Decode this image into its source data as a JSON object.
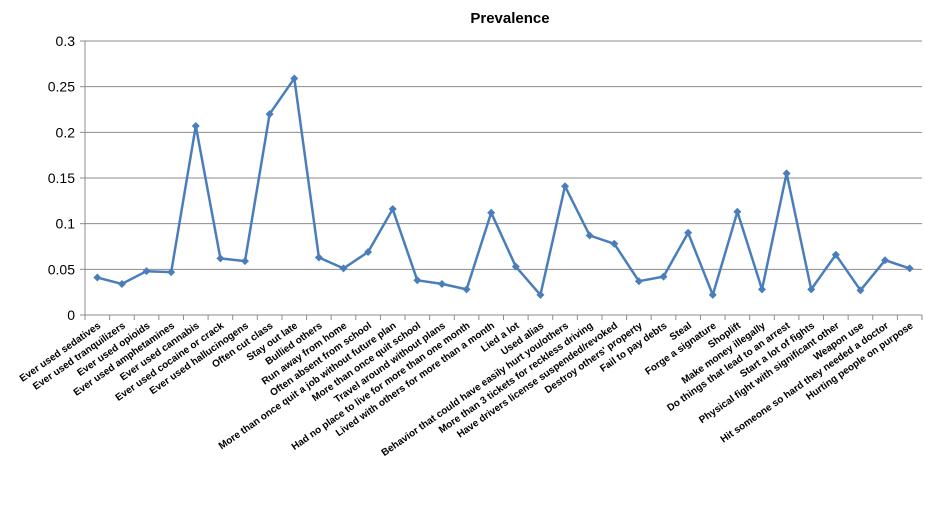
{
  "chart_data": {
    "type": "line",
    "title": "Prevalence",
    "xlabel": "",
    "ylabel": "",
    "ylim": [
      0,
      0.3
    ],
    "yticks": [
      "0",
      "0.05",
      "0.1",
      "0.15",
      "0.2",
      "0.25",
      "0.3"
    ],
    "grid": true,
    "legend": "none",
    "series_color": "#4a7ebb",
    "categories": [
      "Ever used sedatives",
      "Ever used tranquilizers",
      "Ever used opioids",
      "Ever used amphetamines",
      "Ever used cannabis",
      "Ever used cocaine or crack",
      "Ever used hallucinogens",
      "Often cut class",
      "Stay out late",
      "Bullied others",
      "Run away from home",
      "Often absent from school",
      "More than once quit a job without future plan",
      "More than once quit school",
      "Travel around without plans",
      "Had no place to live for more than one month",
      "Lived with others for more than a month",
      "Lied a lot",
      "Used alias",
      "Behavior that could have easily hurt you/others",
      "More than 3 tickets for reckless driving",
      "Have drivers license suspended/revoked",
      "Destroy others' property",
      "Fail to pay debts",
      "Steal",
      "Forge a signature",
      "Shoplift",
      "Make money illegally",
      "Do things that lead to an arrest",
      "Start a lot of fights",
      "Physical fight with significant  other",
      "Weapon use",
      "Hit someone so hard they needed a doctor",
      "Hurting people on purpose"
    ],
    "series": [
      {
        "values": [
          0.041,
          0.034,
          0.048,
          0.047,
          0.207,
          0.062,
          0.059,
          0.22,
          0.259,
          0.063,
          0.051,
          0.069,
          0.116,
          0.038,
          0.034,
          0.028,
          0.112,
          0.053,
          0.022,
          0.141,
          0.087,
          0.078,
          0.037,
          0.042,
          0.09,
          0.022,
          0.113,
          0.028,
          0.155,
          0.028,
          0.066,
          0.027,
          0.06,
          0.051
        ]
      }
    ]
  }
}
